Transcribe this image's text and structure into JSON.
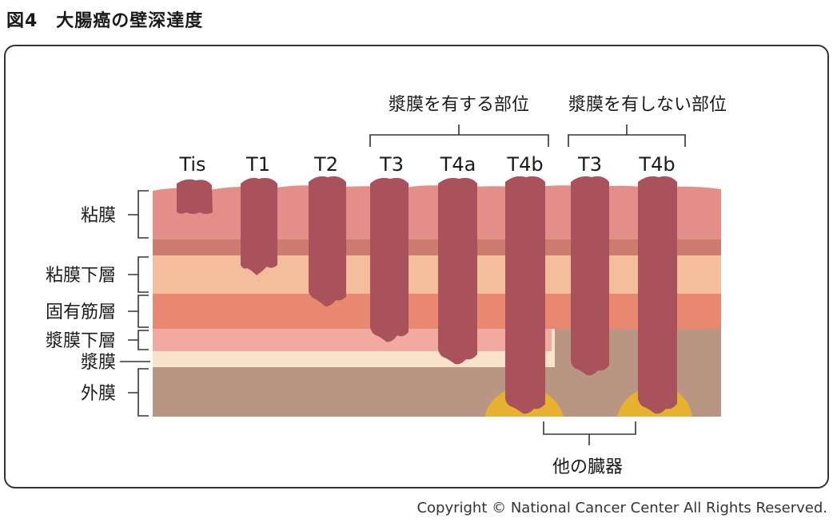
{
  "figure_title": "図4　大腸癌の壁深達度",
  "group_labels": {
    "serosa_present": "漿膜を有する部位",
    "serosa_absent": "漿膜を有しない部位",
    "other_organs": "他の臓器"
  },
  "stage_labels": [
    "Tis",
    "T1",
    "T2",
    "T3",
    "T4a",
    "T4b",
    "T3",
    "T4b"
  ],
  "layer_labels": {
    "mucosa": "粘膜",
    "submucosa": "粘膜下層",
    "muscularis": "固有筋層",
    "subserosa": "漿膜下層",
    "serosa": "漿膜",
    "adventitia": "外膜"
  },
  "colors": {
    "mucosa": "#e48e89",
    "muscularis_mucosae": "#cd7b6e",
    "submucosa": "#f4bd9c",
    "muscularis": "#e98870",
    "subserosa": "#f0aaa0",
    "serosa": "#fae3cc",
    "adventitia": "#bb9584",
    "tumor": "#a9525c",
    "invasion": "#e7b230"
  },
  "copyright": "Copyright © National Cancer Center All Rights Reserved."
}
